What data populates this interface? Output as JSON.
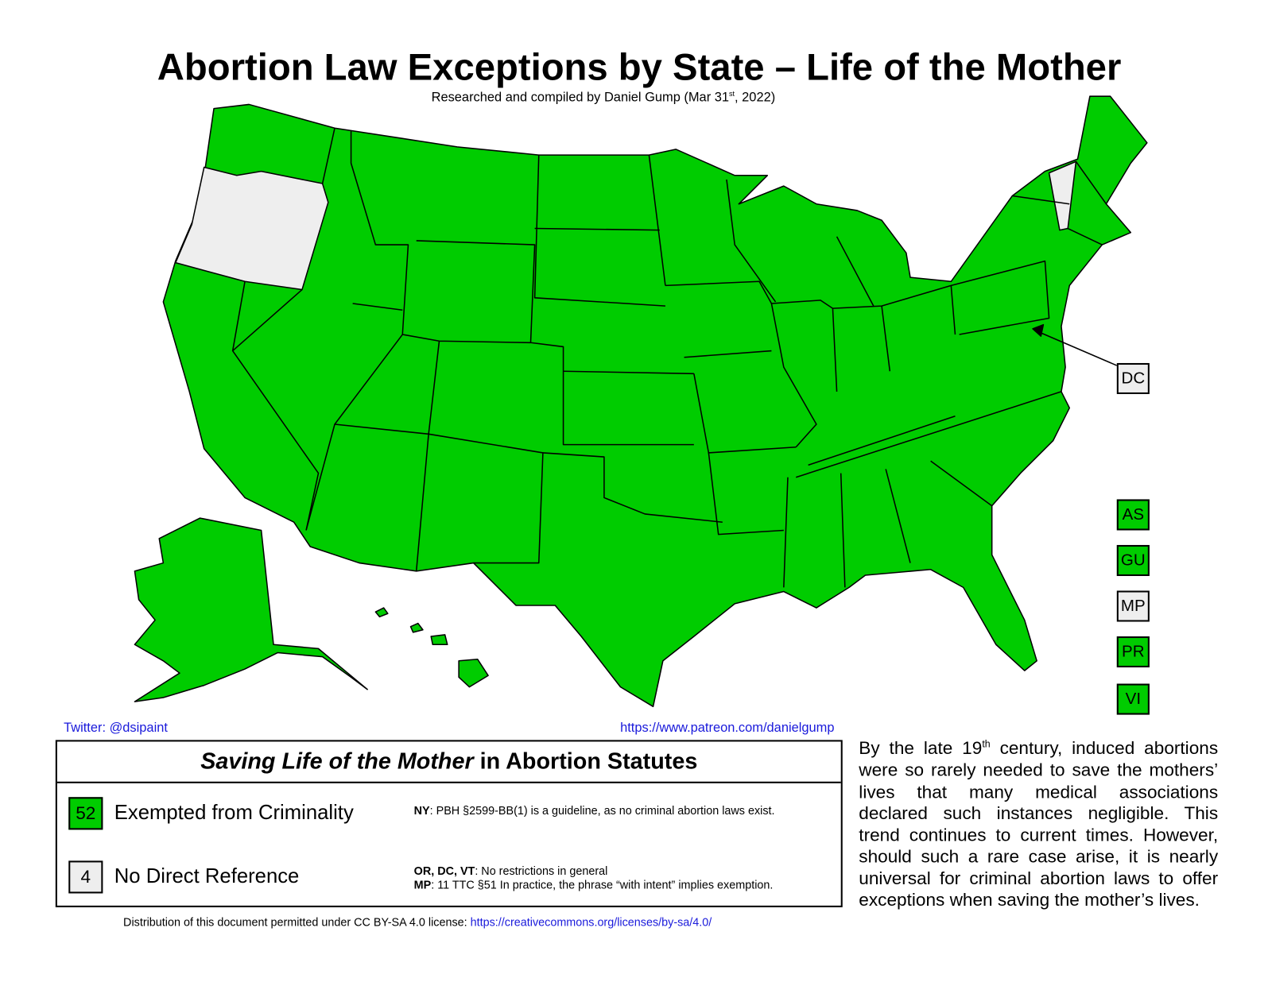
{
  "header": {
    "title": "Abortion Law Exceptions by State – Life of the Mother",
    "subtitle": [
      "Researched and compiled by Daniel Gump (Mar 31",
      "st",
      ", 2022)"
    ]
  },
  "territories": [
    {
      "label": "DC",
      "color": "#eeeeee"
    },
    {
      "label": "AS",
      "color": "#00cc00"
    },
    {
      "label": "GU",
      "color": "#00cc00"
    },
    {
      "label": "MP",
      "color": "#eeeeee"
    },
    {
      "label": "PR",
      "color": "#00cc00"
    },
    {
      "label": "VI",
      "color": "#00cc00"
    }
  ],
  "links": {
    "twitter": "Twitter: @dsipaint",
    "patreon": "https://www.patreon.com/danielgump"
  },
  "legend": {
    "title": [
      "Saving Life of the Mother",
      " in Abortion Statutes"
    ],
    "items": [
      {
        "count": 52,
        "label": "Exempted from Criminality",
        "color": "#00cc00",
        "notes": [
          [
            "NY",
            ": PBH §2599-BB(1) is a guideline, as no criminal abortion laws exist."
          ]
        ]
      },
      {
        "count": 4,
        "label": "No Direct Reference",
        "color": "#eeeeee",
        "notes": [
          [
            "OR, DC, VT",
            ": No restrictions in general"
          ],
          [
            "MP",
            ": 11 TTC §51 In practice, the phrase “with intent” implies exemption."
          ]
        ]
      }
    ]
  },
  "footer": {
    "text": "Distribution of this document permitted under CC BY-SA 4.0 license: ",
    "link": "https://creativecommons.org/licenses/by-sa/4.0/"
  },
  "paragraph": [
    "By the late 19",
    "th",
    " century, induced abortions were so rarely needed to save the mothers’ lives that many medical associations declared such instances negligible. This trend continues to current times. However, should such a rare case arise, it is nearly universal for criminal abortion laws to offer exceptions when saving the mother’s lives."
  ]
}
